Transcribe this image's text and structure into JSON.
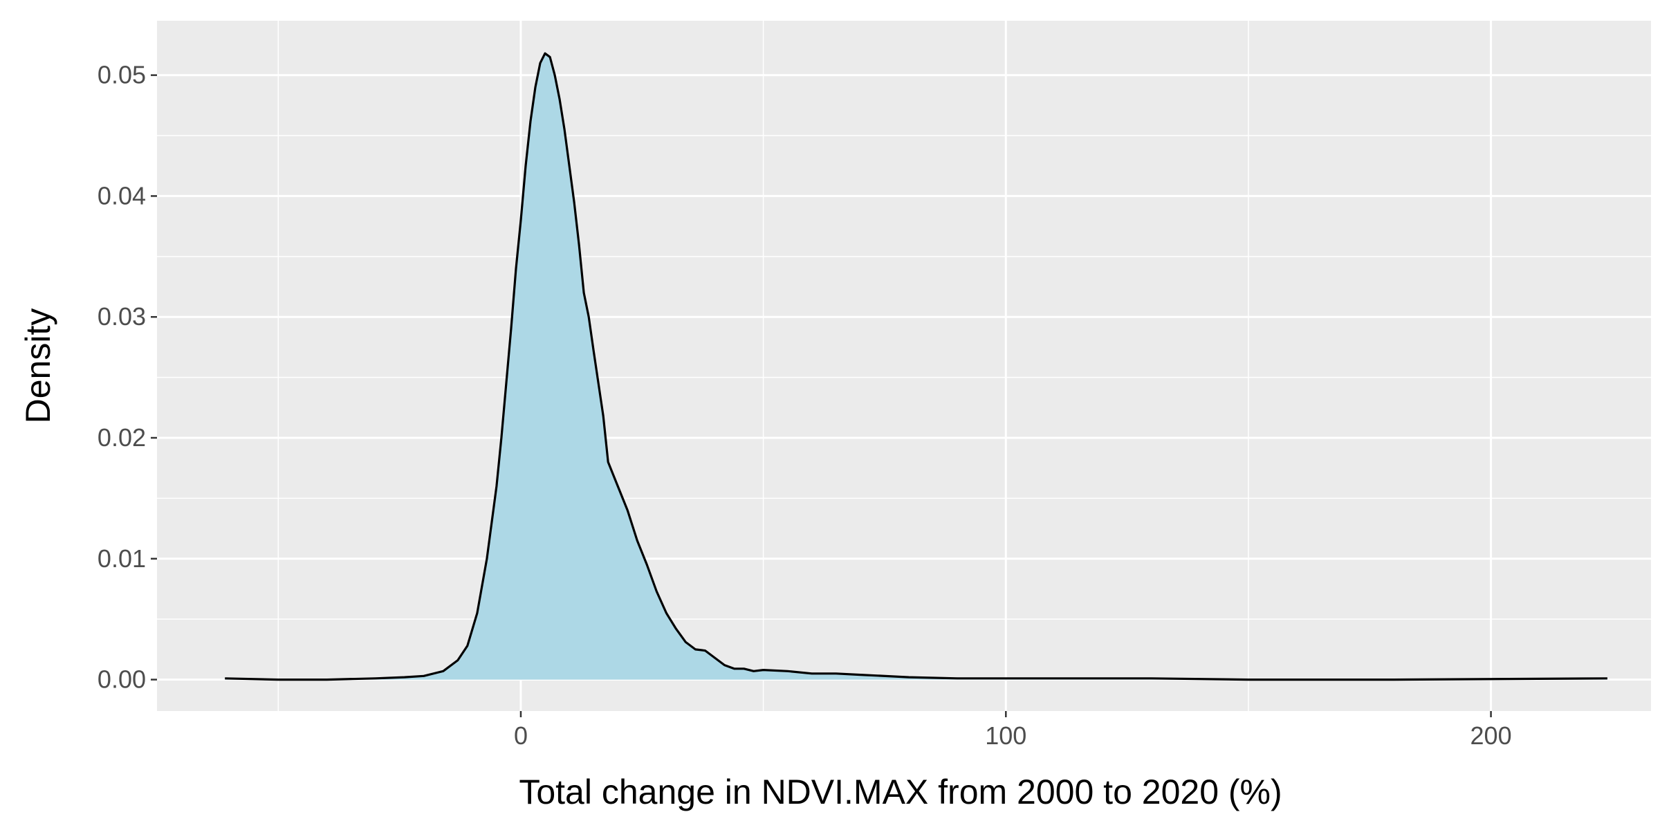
{
  "chart_data": {
    "type": "area",
    "xlabel": "Total change in NDVI.MAX from 2000 to 2020 (%)",
    "ylabel": "Density",
    "xlim": [
      -75,
      233
    ],
    "ylim": [
      -0.0026,
      0.0545
    ],
    "x_ticks": [
      0,
      100,
      200
    ],
    "x_tick_labels": [
      "0",
      "100",
      "200"
    ],
    "y_ticks": [
      0.0,
      0.01,
      0.02,
      0.03,
      0.04,
      0.05
    ],
    "y_tick_labels": [
      "0.00",
      "0.01",
      "0.02",
      "0.03",
      "0.04",
      "0.05"
    ],
    "grid": true,
    "legend": "none",
    "fill_color": "#add8e6",
    "line_color": "#000000",
    "panel_background": "#ebebeb",
    "series": [
      {
        "x": [
          -61,
          -50,
          -40,
          -30,
          -24,
          -20,
          -16,
          -13,
          -11,
          -9,
          -7,
          -5,
          -4,
          -3,
          -2,
          -1,
          0,
          1,
          2,
          3,
          4,
          5,
          6,
          7,
          8,
          9,
          10,
          11,
          12,
          13,
          14,
          15,
          16,
          17,
          18,
          20,
          22,
          24,
          26,
          28,
          30,
          32,
          34,
          36,
          38,
          40,
          42,
          44,
          46,
          48,
          50,
          55,
          60,
          65,
          70,
          80,
          90,
          100,
          110,
          120,
          130,
          150,
          180,
          224
        ],
        "y": [
          0.0001,
          0.0,
          0.0,
          0.0001,
          0.0002,
          0.0003,
          0.0007,
          0.0016,
          0.0028,
          0.0055,
          0.01,
          0.016,
          0.02,
          0.0245,
          0.029,
          0.034,
          0.038,
          0.0425,
          0.0462,
          0.049,
          0.051,
          0.0518,
          0.0515,
          0.05,
          0.048,
          0.0455,
          0.0425,
          0.0395,
          0.036,
          0.032,
          0.03,
          0.0272,
          0.0245,
          0.0218,
          0.018,
          0.016,
          0.014,
          0.0115,
          0.0095,
          0.0073,
          0.0055,
          0.0042,
          0.0031,
          0.0025,
          0.0024,
          0.0018,
          0.0012,
          0.0009,
          0.0009,
          0.0007,
          0.0008,
          0.0007,
          0.0005,
          0.0005,
          0.0004,
          0.0002,
          0.0001,
          0.0001,
          0.0001,
          0.0001,
          0.0001,
          0.0,
          0.0,
          0.0001
        ]
      }
    ]
  }
}
